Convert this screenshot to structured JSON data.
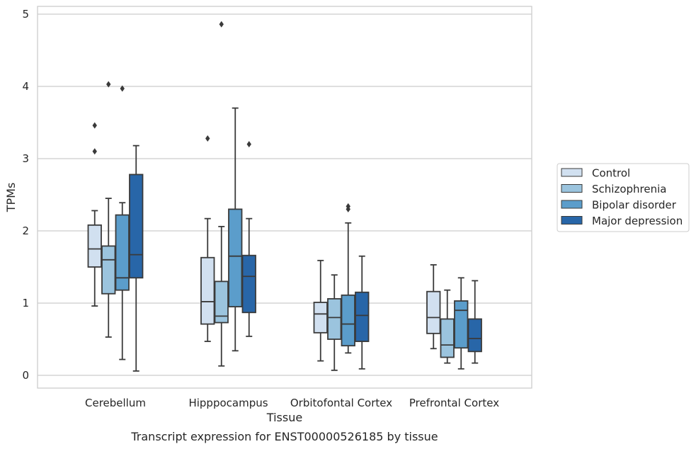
{
  "caption": "Transcript expression for ENST00000526185 by tissue",
  "chart_data": {
    "type": "boxplot",
    "xlabel": "Tissue",
    "ylabel": "TPMs",
    "ylim": [
      -0.17,
      5.1
    ],
    "yticks": [
      0,
      1,
      2,
      3,
      4,
      5
    ],
    "grid": "horizontal",
    "legend_position": "right",
    "categories": [
      "Cerebellum",
      "Hipppocampus",
      "Orbitofontal Cortex",
      "Prefrontal Cortex"
    ],
    "series": [
      {
        "name": "Control",
        "color": "#d1e0f0",
        "boxes": [
          {
            "whisker_low": 0.96,
            "q1": 1.5,
            "median": 1.75,
            "q3": 2.08,
            "whisker_high": 2.28,
            "outliers": [
              3.46,
              3.1
            ]
          },
          {
            "whisker_low": 0.47,
            "q1": 0.71,
            "median": 1.02,
            "q3": 1.63,
            "whisker_high": 2.17,
            "outliers": [
              3.28
            ]
          },
          {
            "whisker_low": 0.2,
            "q1": 0.59,
            "median": 0.85,
            "q3": 1.01,
            "whisker_high": 1.59,
            "outliers": []
          },
          {
            "whisker_low": 0.37,
            "q1": 0.58,
            "median": 0.8,
            "q3": 1.16,
            "whisker_high": 1.53,
            "outliers": []
          }
        ]
      },
      {
        "name": "Schizophrenia",
        "color": "#9bc4de",
        "boxes": [
          {
            "whisker_low": 0.53,
            "q1": 1.13,
            "median": 1.6,
            "q3": 1.79,
            "whisker_high": 2.45,
            "outliers": [
              4.03
            ]
          },
          {
            "whisker_low": 0.13,
            "q1": 0.73,
            "median": 0.82,
            "q3": 1.3,
            "whisker_high": 2.06,
            "outliers": [
              4.86
            ]
          },
          {
            "whisker_low": 0.07,
            "q1": 0.5,
            "median": 0.8,
            "q3": 1.06,
            "whisker_high": 1.39,
            "outliers": []
          },
          {
            "whisker_low": 0.17,
            "q1": 0.25,
            "median": 0.42,
            "q3": 0.78,
            "whisker_high": 1.18,
            "outliers": []
          }
        ]
      },
      {
        "name": "Bipolar disorder",
        "color": "#5b9dcb",
        "boxes": [
          {
            "whisker_low": 0.22,
            "q1": 1.18,
            "median": 1.35,
            "q3": 2.22,
            "whisker_high": 2.39,
            "outliers": [
              3.97
            ]
          },
          {
            "whisker_low": 0.34,
            "q1": 0.95,
            "median": 1.65,
            "q3": 2.3,
            "whisker_high": 3.7,
            "outliers": []
          },
          {
            "whisker_low": 0.31,
            "q1": 0.41,
            "median": 0.71,
            "q3": 1.11,
            "whisker_high": 2.11,
            "outliers": [
              2.34,
              2.3
            ]
          },
          {
            "whisker_low": 0.09,
            "q1": 0.38,
            "median": 0.9,
            "q3": 1.03,
            "whisker_high": 1.35,
            "outliers": []
          }
        ]
      },
      {
        "name": "Major depression",
        "color": "#2866a8",
        "boxes": [
          {
            "whisker_low": 0.06,
            "q1": 1.35,
            "median": 1.67,
            "q3": 2.78,
            "whisker_high": 3.18,
            "outliers": []
          },
          {
            "whisker_low": 0.54,
            "q1": 0.87,
            "median": 1.37,
            "q3": 1.66,
            "whisker_high": 2.17,
            "outliers": [
              3.2
            ]
          },
          {
            "whisker_low": 0.09,
            "q1": 0.47,
            "median": 0.83,
            "q3": 1.15,
            "whisker_high": 1.65,
            "outliers": []
          },
          {
            "whisker_low": 0.17,
            "q1": 0.33,
            "median": 0.51,
            "q3": 0.78,
            "whisker_high": 1.31,
            "outliers": []
          }
        ]
      }
    ],
    "colors": {
      "grid": "#cccccc",
      "frame": "#cccccc",
      "box_edge": "#3a3a3a",
      "text": "#262626"
    }
  }
}
